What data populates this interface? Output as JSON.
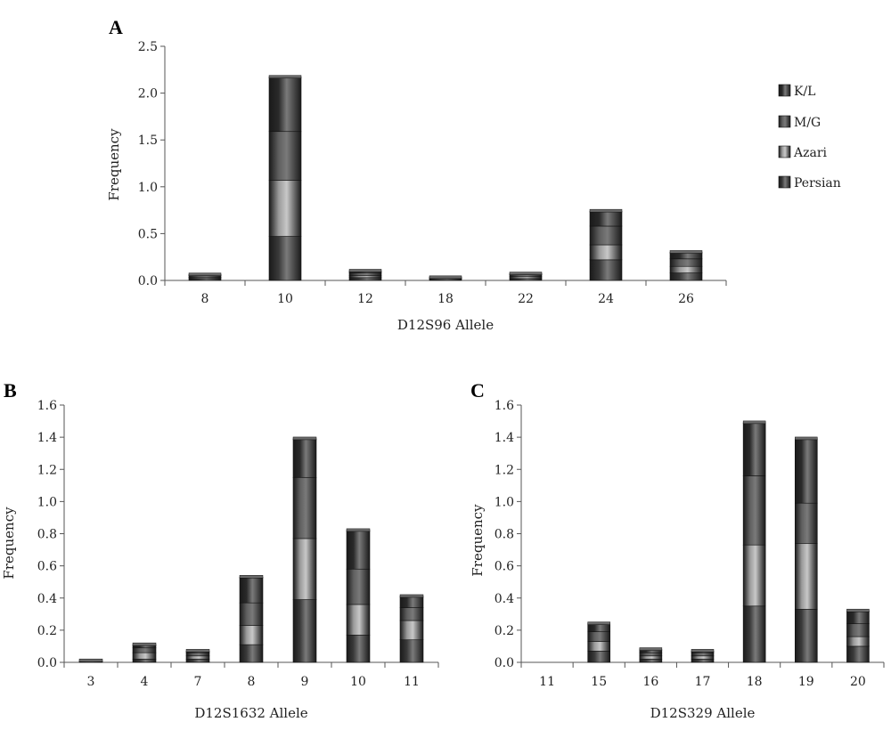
{
  "legend": {
    "entries": [
      "K/L",
      "M/G",
      "Azari",
      "Persian"
    ]
  },
  "colors": {
    "Persian": "#3a3a3a",
    "Azari": "#9a9a9a",
    "M/G": "#5f5f5f",
    "K/L": "#2a2a2a",
    "axis": "#555555"
  },
  "chart_data": [
    {
      "type": "bar",
      "stacked": true,
      "panel": "A",
      "xlabel": "D12S96 Allele",
      "ylabel": "Frequency",
      "ylim": [
        0,
        2.5
      ],
      "yticks": [
        "0.0",
        "0.5",
        "1.0",
        "1.5",
        "2.0",
        "2.5"
      ],
      "categories": [
        "8",
        "10",
        "12",
        "18",
        "22",
        "24",
        "26"
      ],
      "series": [
        {
          "name": "Persian",
          "values": [
            0.02,
            0.47,
            0.03,
            0.01,
            0.02,
            0.22,
            0.08
          ]
        },
        {
          "name": "Azari",
          "values": [
            0.01,
            0.6,
            0.02,
            0.01,
            0.02,
            0.16,
            0.07
          ]
        },
        {
          "name": "M/G",
          "values": [
            0.02,
            0.52,
            0.03,
            0.01,
            0.02,
            0.2,
            0.08
          ]
        },
        {
          "name": "K/L",
          "values": [
            0.01,
            0.58,
            0.02,
            0.0,
            0.01,
            0.16,
            0.07
          ]
        }
      ]
    },
    {
      "type": "bar",
      "stacked": true,
      "panel": "B",
      "xlabel": "D12S1632 Allele",
      "ylabel": "Frequency",
      "ylim": [
        0,
        1.6
      ],
      "yticks": [
        "0.0",
        "0.2",
        "0.4",
        "0.6",
        "0.8",
        "1.0",
        "1.2",
        "1.4",
        "1.6"
      ],
      "categories": [
        "3",
        "4",
        "7",
        "8",
        "9",
        "10",
        "11"
      ],
      "series": [
        {
          "name": "Persian",
          "values": [
            0.0,
            0.02,
            0.02,
            0.11,
            0.39,
            0.17,
            0.14
          ]
        },
        {
          "name": "Azari",
          "values": [
            0.0,
            0.04,
            0.02,
            0.12,
            0.38,
            0.19,
            0.12
          ]
        },
        {
          "name": "M/G",
          "values": [
            0.01,
            0.03,
            0.02,
            0.14,
            0.38,
            0.22,
            0.08
          ]
        },
        {
          "name": "K/L",
          "values": [
            0.0,
            0.02,
            0.01,
            0.16,
            0.24,
            0.24,
            0.07
          ]
        }
      ]
    },
    {
      "type": "bar",
      "stacked": true,
      "panel": "C",
      "xlabel": "D12S329 Allele",
      "ylabel": "Frequency",
      "ylim": [
        0,
        1.6
      ],
      "yticks": [
        "0.0",
        "0.2",
        "0.4",
        "0.6",
        "0.8",
        "1.0",
        "1.2",
        "1.4",
        "1.6"
      ],
      "categories": [
        "11",
        "15",
        "16",
        "17",
        "18",
        "19",
        "20"
      ],
      "series": [
        {
          "name": "Persian",
          "values": [
            0.0,
            0.07,
            0.02,
            0.02,
            0.35,
            0.33,
            0.1
          ]
        },
        {
          "name": "Azari",
          "values": [
            0.0,
            0.06,
            0.02,
            0.02,
            0.38,
            0.41,
            0.06
          ]
        },
        {
          "name": "M/G",
          "values": [
            0.0,
            0.06,
            0.02,
            0.02,
            0.43,
            0.25,
            0.08
          ]
        },
        {
          "name": "K/L",
          "values": [
            0.0,
            0.05,
            0.02,
            0.01,
            0.33,
            0.4,
            0.08
          ]
        }
      ]
    }
  ]
}
